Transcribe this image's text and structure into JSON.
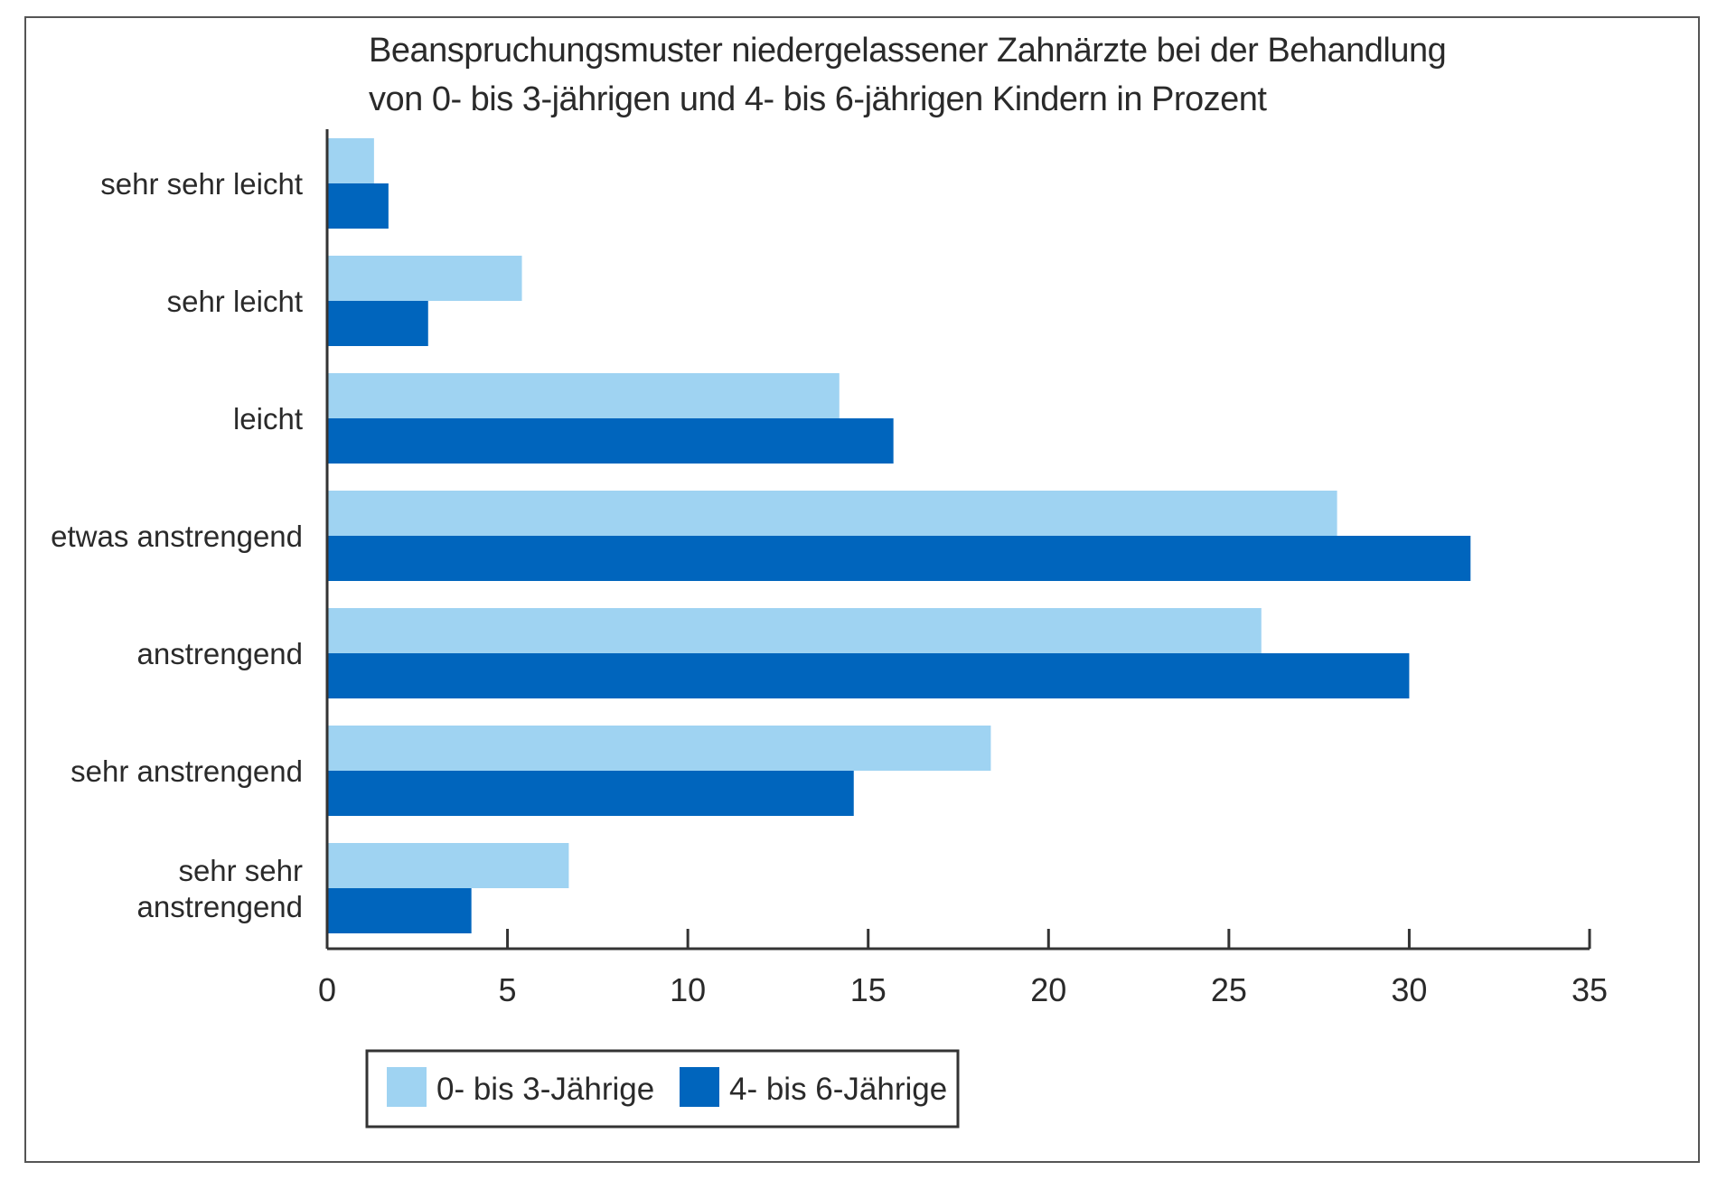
{
  "chart_data": {
    "type": "bar",
    "orientation": "horizontal",
    "title": [
      "Beanspruchungsmuster niedergelassener Zahnärzte bei der Behandlung",
      "von 0- bis 3-jährigen und 4- bis 6-jährigen Kindern in Prozent"
    ],
    "categories": [
      [
        "sehr sehr leicht"
      ],
      [
        "sehr leicht"
      ],
      [
        "leicht"
      ],
      [
        "etwas anstrengend"
      ],
      [
        "anstrengend"
      ],
      [
        "sehr anstrengend"
      ],
      [
        "sehr sehr",
        "anstrengend"
      ]
    ],
    "series": [
      {
        "name": "0- bis 3-Jährige",
        "color": "#9fd3f2",
        "values": [
          1.3,
          5.4,
          14.2,
          28.0,
          25.9,
          18.4,
          6.7
        ]
      },
      {
        "name": "4- bis 6-Jährige",
        "color": "#0065bd",
        "values": [
          1.7,
          2.8,
          15.7,
          31.7,
          30.0,
          14.6,
          4.0
        ]
      }
    ],
    "xlim": [
      0,
      35
    ],
    "xticks": [
      "0",
      "5",
      "10",
      "15",
      "20",
      "25",
      "30",
      "35"
    ],
    "legend_position": "bottom-left",
    "grid": false
  }
}
